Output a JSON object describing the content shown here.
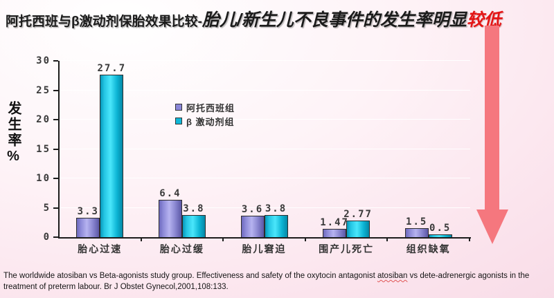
{
  "title": {
    "part1": "阿托西班与β激动剂保胎效果比较-",
    "part2": "胎儿/新生儿不良事件的发生率明显",
    "part3": "较低"
  },
  "chart_data": {
    "type": "bar",
    "title": "",
    "xlabel": "",
    "ylabel": "发生率%",
    "categories": [
      "胎心过速",
      "胎心过缓",
      "胎儿窘迫",
      "围产儿死亡",
      "组织缺氧"
    ],
    "series": [
      {
        "name": "阿托西班组",
        "color": "#8a86d8",
        "values": [
          3.3,
          6.4,
          3.6,
          1.47,
          1.5
        ]
      },
      {
        "name": "β 激动剂组",
        "color": "#10b8d8",
        "values": [
          27.7,
          3.8,
          3.8,
          2.77,
          0.5
        ]
      }
    ],
    "ylim": [
      0,
      30
    ],
    "yticks": [
      0,
      5,
      10,
      15,
      20,
      25,
      30
    ],
    "grid": true,
    "legend_position": "inside-upper-middle"
  },
  "citation": {
    "before": "The worldwide atosiban vs Beta-agonists study group. Effectiveness and safety of the oxytocin antagonist  ",
    "underlined_word": "atosiban",
    "after": " vs dete-adrenergic agonists in the treatment of preterm labour. Br J Obstet Gynecol,2001,108:133."
  },
  "colors": {
    "highlight_red": "#e41414",
    "arrow": "#f5777e",
    "axis": "#1c1c1c",
    "chart_text": "#3a3a3a"
  }
}
